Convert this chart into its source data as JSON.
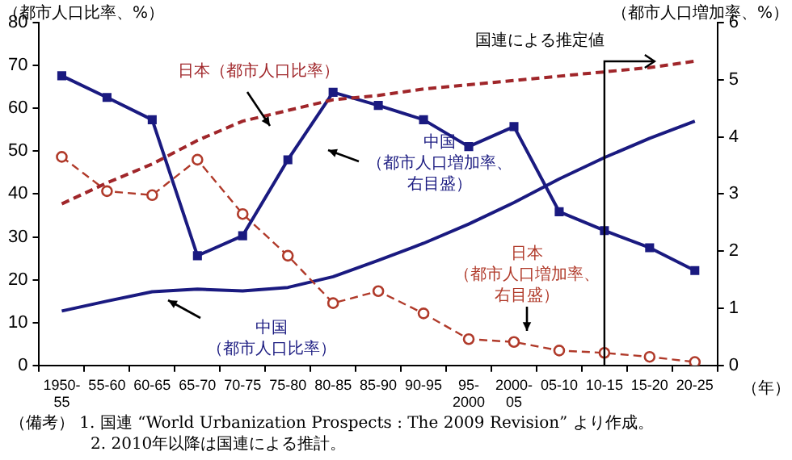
{
  "chart_data": {
    "type": "line",
    "xlabel": "（年）",
    "ylabel": "（都市人口比率、%）",
    "y2label": "（都市人口増加率、%）",
    "categories": [
      "1950-55",
      "55-60",
      "60-65",
      "65-70",
      "70-75",
      "75-80",
      "80-85",
      "85-90",
      "90-95",
      "95-2000",
      "2000-05",
      "05-10",
      "10-15",
      "15-20",
      "20-25"
    ],
    "series": [
      {
        "name": "日本（都市人口比率）",
        "color": "#a0262a",
        "line_style": "dashed",
        "marker": "none",
        "values": [
          37.7,
          42.6,
          47,
          52.5,
          57,
          59.5,
          62,
          63,
          64.5,
          65.5,
          66.5,
          67.5,
          68.5,
          69.5,
          71
        ]
      },
      {
        "name": "中国（都市人口増加率、右目盛）",
        "color": "#1a1a80",
        "line_style": "solid",
        "marker": "square",
        "axis": "y2",
        "values": [
          5.07,
          4.69,
          4.3,
          1.92,
          2.27,
          3.6,
          4.78,
          4.55,
          4.3,
          3.83,
          4.18,
          2.69,
          2.36,
          2.06,
          1.66
        ]
      },
      {
        "name": "日本（都市人口増加率、右目盛）",
        "color": "#b03a2a",
        "line_style": "dashed",
        "marker": "circle",
        "axis": "y2",
        "values": [
          3.65,
          3.05,
          2.98,
          3.6,
          2.65,
          1.92,
          1.09,
          1.3,
          0.91,
          0.46,
          0.41,
          0.26,
          0.22,
          0.15,
          0.06
        ]
      },
      {
        "name": "中国（都市人口比率）",
        "color": "#1a1a80",
        "line_style": "solid",
        "marker": "none",
        "values": [
          12.7,
          15,
          17.2,
          17.8,
          17.4,
          18.2,
          20.7,
          24.5,
          28.5,
          33,
          38,
          43.5,
          48.5,
          53,
          57
        ]
      }
    ],
    "ylim": [
      0,
      80
    ],
    "yticks": [
      0,
      10,
      20,
      30,
      40,
      50,
      60,
      70,
      80
    ],
    "y2lim": [
      0,
      6
    ],
    "y2ticks": [
      0,
      1,
      2,
      3,
      4,
      5,
      6
    ],
    "grid": false,
    "legend": false,
    "ref_lines": [
      {
        "axis": "x",
        "value": "10-15",
        "label": "国連による推定値",
        "color": "#000000"
      }
    ],
    "annotations": [
      "（備考） 1.  国連 “World Urbanization Prospects : The 2009 Revision” より作成。",
      "2.  2010年以降は国連による推計。"
    ]
  }
}
